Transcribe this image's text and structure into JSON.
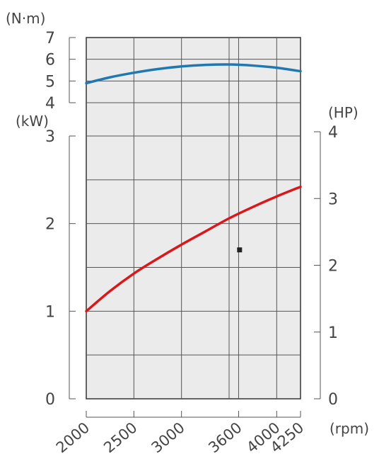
{
  "chart_data": {
    "type": "line",
    "x_unit": "(rpm)",
    "x_ticks": [
      "2000",
      "2500",
      "3000",
      "3600",
      "4000",
      "4250"
    ],
    "xlim": [
      2000,
      4250
    ],
    "grid": true,
    "torque_axis": {
      "unit": "(N·m)",
      "ticks": [
        "4",
        "5",
        "6",
        "7"
      ],
      "ylim": [
        4,
        7
      ]
    },
    "power_kw_axis": {
      "unit": "(kW)",
      "ticks": [
        "0",
        "1",
        "2",
        "3"
      ],
      "ylim": [
        0,
        3
      ]
    },
    "power_hp_axis": {
      "unit": "(HP)",
      "ticks": [
        "0",
        "1",
        "2",
        "3",
        "4"
      ],
      "ylim": [
        0,
        4
      ]
    },
    "series": [
      {
        "axis": "torque",
        "color": "#1f78b0",
        "x": [
          2000,
          2250,
          2500,
          2750,
          3000,
          3250,
          3500,
          3750,
          4000,
          4250
        ],
        "y": [
          4.9,
          5.17,
          5.38,
          5.55,
          5.67,
          5.74,
          5.76,
          5.71,
          5.61,
          5.45
        ]
      },
      {
        "axis": "power_kw",
        "color": "#d7191c",
        "x": [
          2000,
          2250,
          2500,
          2750,
          3000,
          3250,
          3500,
          3750,
          4000,
          4250
        ],
        "y": [
          1.0,
          1.23,
          1.43,
          1.6,
          1.76,
          1.91,
          2.06,
          2.19,
          2.31,
          2.42
        ]
      }
    ],
    "marker": {
      "x": 3610,
      "y_kw": 1.7,
      "color": "#222222"
    }
  }
}
